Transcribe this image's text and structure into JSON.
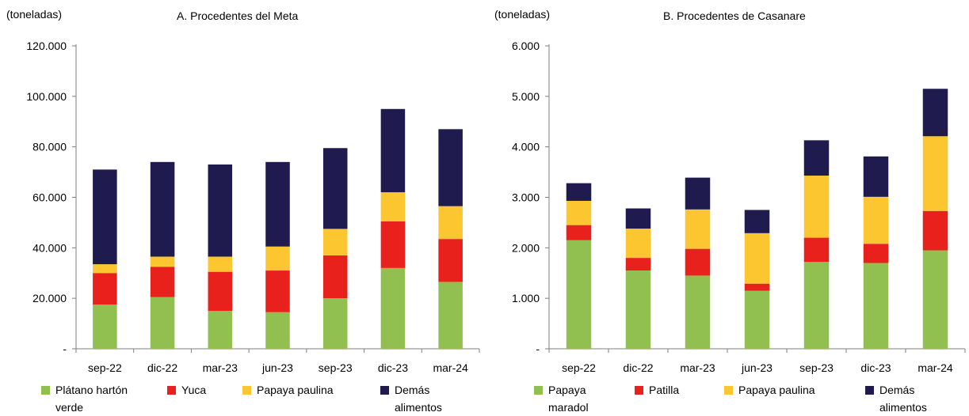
{
  "panels": [
    {
      "unit": "(toneladas)",
      "title": "A. Procedentes del Meta",
      "legend": [
        "Plátano hartón verde",
        "Yuca",
        "Papaya paulina",
        "Demás alimentos"
      ]
    },
    {
      "unit": "(toneladas)",
      "title": "B. Procedentes de Casanare",
      "legend": [
        "Papaya maradol",
        "Patilla",
        "Papaya paulina",
        "Demás alimentos"
      ]
    }
  ],
  "colors": [
    "#92c050",
    "#e8211d",
    "#fcc630",
    "#1f1b4e"
  ],
  "chart_data": [
    {
      "type": "bar",
      "stacked": true,
      "title": "A. Procedentes del Meta",
      "ylabel": "(toneladas)",
      "categories": [
        "sep-22",
        "dic-22",
        "mar-23",
        "jun-23",
        "sep-23",
        "dic-23",
        "mar-24"
      ],
      "ylim": [
        0,
        120000
      ],
      "yticks": [
        0,
        20000,
        40000,
        60000,
        80000,
        100000,
        120000
      ],
      "ytick_labels": [
        "-",
        "20.000",
        "40.000",
        "60.000",
        "80.000",
        "100.000",
        "120.000"
      ],
      "series": [
        {
          "name": "Plátano hartón verde",
          "values": [
            17500,
            20500,
            15000,
            14500,
            20000,
            32000,
            26500
          ]
        },
        {
          "name": "Yuca",
          "values": [
            12500,
            12000,
            15500,
            16500,
            17000,
            18500,
            17000
          ]
        },
        {
          "name": "Papaya paulina",
          "values": [
            3500,
            4000,
            6000,
            9500,
            10500,
            11500,
            13000
          ]
        },
        {
          "name": "Demás alimentos",
          "values": [
            37500,
            37500,
            36500,
            33500,
            32000,
            33000,
            30500
          ]
        }
      ]
    },
    {
      "type": "bar",
      "stacked": true,
      "title": "B. Procedentes de Casanare",
      "ylabel": "(toneladas)",
      "categories": [
        "sep-22",
        "dic-22",
        "mar-23",
        "jun-23",
        "sep-23",
        "dic-23",
        "mar-24"
      ],
      "ylim": [
        0,
        6000
      ],
      "yticks": [
        0,
        1000,
        2000,
        3000,
        4000,
        5000,
        6000
      ],
      "ytick_labels": [
        "-",
        "1.000",
        "2.000",
        "3.000",
        "4.000",
        "5.000",
        "6.000"
      ],
      "series": [
        {
          "name": "Papaya maradol",
          "values": [
            2150,
            1550,
            1450,
            1150,
            1720,
            1700,
            1950
          ]
        },
        {
          "name": "Patilla",
          "values": [
            300,
            250,
            530,
            140,
            480,
            380,
            780
          ]
        },
        {
          "name": "Papaya paulina",
          "values": [
            480,
            580,
            780,
            1000,
            1230,
            930,
            1480
          ]
        },
        {
          "name": "Demás alimentos",
          "values": [
            350,
            400,
            630,
            460,
            700,
            800,
            940
          ]
        }
      ]
    }
  ]
}
